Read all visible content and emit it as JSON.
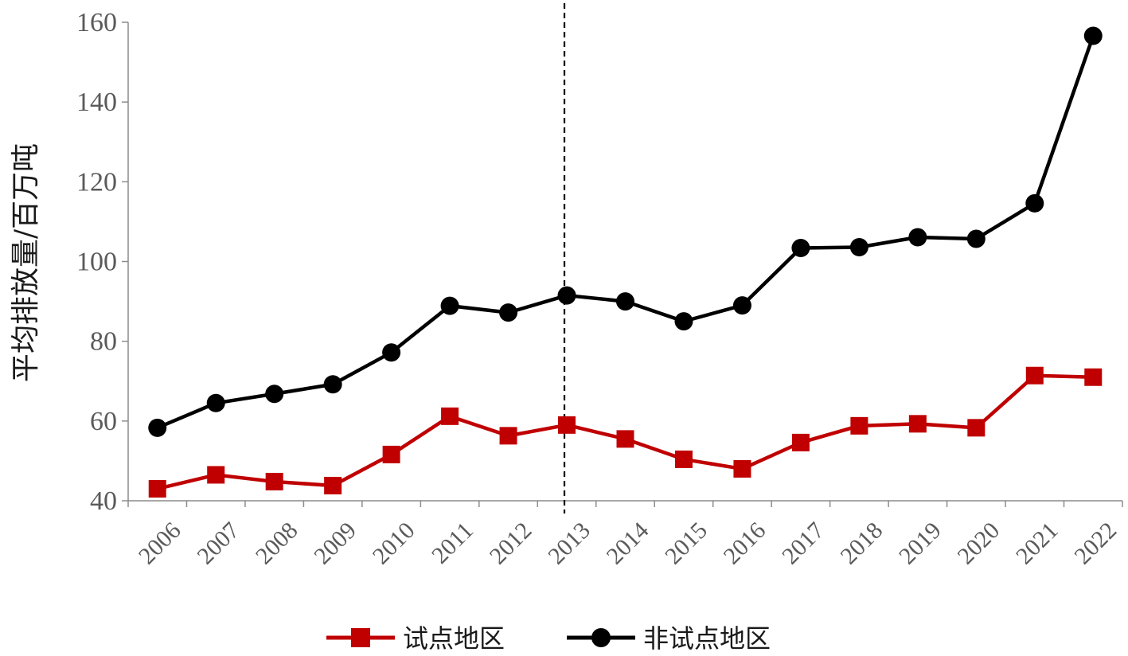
{
  "chart_data": {
    "type": "line",
    "title": "",
    "xlabel": "",
    "ylabel": "平均排放量/百万吨",
    "ylim": [
      40,
      160
    ],
    "yticks": [
      40,
      60,
      80,
      100,
      120,
      140,
      160
    ],
    "categories": [
      "2006",
      "2007",
      "2008",
      "2009",
      "2010",
      "2011",
      "2012",
      "2013",
      "2014",
      "2015",
      "2016",
      "2017",
      "2018",
      "2019",
      "2020",
      "2021",
      "2022"
    ],
    "reference_line": {
      "category": "2013",
      "style": "dashed"
    },
    "grid": false,
    "legend_position": "bottom",
    "series": [
      {
        "name": "试点地区",
        "color": "#c00000",
        "marker": "square",
        "values": [
          43.0,
          46.5,
          44.8,
          43.8,
          51.6,
          61.2,
          56.3,
          59.0,
          55.5,
          50.4,
          48.0,
          54.6,
          58.8,
          59.3,
          58.3,
          71.4,
          71.0
        ]
      },
      {
        "name": "非试点地区",
        "color": "#000000",
        "marker": "circle",
        "values": [
          58.3,
          64.5,
          66.8,
          69.2,
          77.2,
          88.9,
          87.2,
          91.5,
          90.0,
          85.0,
          89.0,
          103.4,
          103.6,
          106.1,
          105.7,
          114.6,
          156.6
        ]
      }
    ]
  }
}
